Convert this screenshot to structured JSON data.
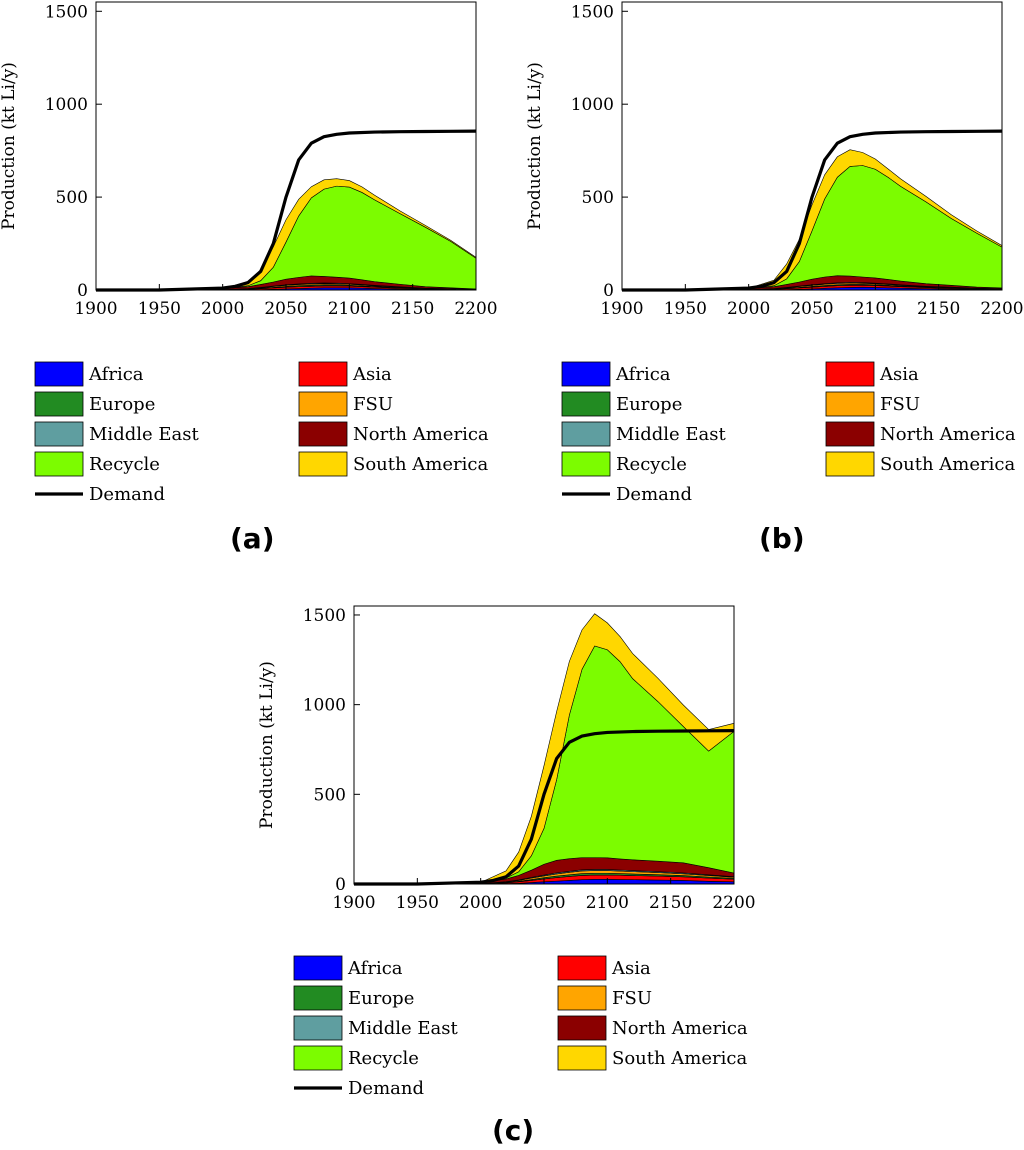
{
  "chart_data": [
    {
      "id": "a",
      "type": "area",
      "panel_label": "(a)",
      "title": "",
      "xlabel": "",
      "ylabel": "Production (kt Li/y)",
      "xlim": [
        1900,
        2200
      ],
      "ylim": [
        0,
        1550
      ],
      "xticks": [
        1900,
        1950,
        2000,
        2050,
        2100,
        2150,
        2200
      ],
      "yticks": [
        0,
        500,
        1000,
        1500
      ],
      "x": [
        1900,
        1950,
        2000,
        2020,
        2030,
        2040,
        2050,
        2060,
        2070,
        2080,
        2090,
        2100,
        2110,
        2120,
        2140,
        2160,
        2180,
        2200
      ],
      "series": [
        {
          "name": "Africa",
          "color": "#0000ff",
          "values": [
            0,
            0,
            0,
            1,
            2,
            4,
            6,
            8,
            10,
            12,
            12,
            12,
            10,
            8,
            5,
            3,
            2,
            1
          ]
        },
        {
          "name": "Asia",
          "color": "#ff0000",
          "values": [
            0,
            0,
            1,
            3,
            5,
            7,
            9,
            10,
            10,
            10,
            10,
            9,
            8,
            7,
            5,
            3,
            2,
            1
          ]
        },
        {
          "name": "Europe",
          "color": "#228b22",
          "values": [
            0,
            0,
            0,
            1,
            2,
            3,
            4,
            5,
            5,
            5,
            5,
            4,
            4,
            3,
            2,
            1,
            1,
            0
          ]
        },
        {
          "name": "FSU",
          "color": "#ffa500",
          "values": [
            0,
            0,
            1,
            2,
            3,
            5,
            6,
            7,
            7,
            7,
            6,
            6,
            5,
            4,
            3,
            2,
            1,
            1
          ]
        },
        {
          "name": "Middle East",
          "color": "#5f9ea0",
          "values": [
            0,
            0,
            0,
            1,
            2,
            2,
            3,
            3,
            4,
            4,
            4,
            3,
            3,
            3,
            2,
            1,
            1,
            0
          ]
        },
        {
          "name": "North America",
          "color": "#8b0000",
          "values": [
            0,
            1,
            5,
            10,
            16,
            22,
            30,
            35,
            40,
            35,
            32,
            30,
            25,
            20,
            14,
            8,
            5,
            3
          ]
        },
        {
          "name": "Recycle",
          "color": "#7cfc00",
          "values": [
            0,
            0,
            0,
            5,
            20,
            80,
            200,
            330,
            420,
            470,
            490,
            490,
            470,
            440,
            380,
            320,
            250,
            165
          ]
        },
        {
          "name": "South America",
          "color": "#ffd700",
          "values": [
            0,
            0,
            2,
            20,
            60,
            110,
            120,
            90,
            60,
            50,
            40,
            35,
            30,
            25,
            15,
            10,
            6,
            5
          ]
        }
      ],
      "demand": {
        "name": "Demand",
        "color": "#000000",
        "x": [
          1900,
          1950,
          2000,
          2010,
          2020,
          2030,
          2040,
          2050,
          2060,
          2070,
          2080,
          2090,
          2100,
          2120,
          2140,
          2160,
          2180,
          2200
        ],
        "values": [
          0,
          0,
          10,
          20,
          40,
          100,
          250,
          500,
          700,
          790,
          825,
          838,
          845,
          850,
          852,
          853,
          854,
          855
        ]
      }
    },
    {
      "id": "b",
      "type": "area",
      "panel_label": "(b)",
      "title": "",
      "xlabel": "",
      "ylabel": "Production (kt Li/y)",
      "xlim": [
        1900,
        2200
      ],
      "ylim": [
        0,
        1550
      ],
      "xticks": [
        1900,
        1950,
        2000,
        2050,
        2100,
        2150,
        2200
      ],
      "yticks": [
        0,
        500,
        1000,
        1500
      ],
      "x": [
        1900,
        1950,
        2000,
        2020,
        2030,
        2040,
        2050,
        2060,
        2070,
        2080,
        2090,
        2100,
        2110,
        2120,
        2140,
        2160,
        2180,
        2200
      ],
      "series": [
        {
          "name": "Africa",
          "color": "#0000ff",
          "values": [
            0,
            0,
            0,
            1,
            2,
            4,
            6,
            9,
            12,
            14,
            15,
            14,
            12,
            10,
            7,
            5,
            3,
            2
          ]
        },
        {
          "name": "Asia",
          "color": "#ff0000",
          "values": [
            0,
            0,
            1,
            3,
            5,
            7,
            9,
            10,
            11,
            11,
            10,
            10,
            9,
            8,
            6,
            4,
            3,
            2
          ]
        },
        {
          "name": "Europe",
          "color": "#228b22",
          "values": [
            0,
            0,
            0,
            1,
            2,
            3,
            4,
            5,
            5,
            5,
            5,
            4,
            4,
            3,
            2,
            2,
            1,
            1
          ]
        },
        {
          "name": "FSU",
          "color": "#ffa500",
          "values": [
            0,
            0,
            1,
            2,
            3,
            5,
            6,
            7,
            7,
            7,
            6,
            6,
            5,
            4,
            3,
            2,
            2,
            1
          ]
        },
        {
          "name": "Middle East",
          "color": "#5f9ea0",
          "values": [
            0,
            0,
            0,
            1,
            2,
            2,
            3,
            3,
            4,
            4,
            4,
            3,
            3,
            3,
            2,
            2,
            1,
            1
          ]
        },
        {
          "name": "North America",
          "color": "#8b0000",
          "values": [
            0,
            1,
            5,
            10,
            16,
            22,
            30,
            36,
            38,
            34,
            30,
            28,
            24,
            20,
            14,
            10,
            6,
            4
          ]
        },
        {
          "name": "Recycle",
          "color": "#7cfc00",
          "values": [
            0,
            0,
            0,
            5,
            30,
            110,
            260,
            420,
            530,
            590,
            600,
            585,
            550,
            510,
            440,
            360,
            290,
            220
          ]
        },
        {
          "name": "South America",
          "color": "#ffd700",
          "values": [
            0,
            0,
            2,
            30,
            80,
            120,
            140,
            130,
            110,
            90,
            70,
            55,
            45,
            40,
            30,
            20,
            12,
            8
          ]
        }
      ],
      "demand": {
        "name": "Demand",
        "color": "#000000",
        "x": [
          1900,
          1950,
          2000,
          2010,
          2020,
          2030,
          2040,
          2050,
          2060,
          2070,
          2080,
          2090,
          2100,
          2120,
          2140,
          2160,
          2180,
          2200
        ],
        "values": [
          0,
          0,
          10,
          20,
          40,
          100,
          250,
          500,
          700,
          790,
          825,
          838,
          845,
          850,
          852,
          853,
          854,
          855
        ]
      }
    },
    {
      "id": "c",
      "type": "area",
      "panel_label": "(c)",
      "title": "",
      "xlabel": "",
      "ylabel": "Production (kt Li/y)",
      "xlim": [
        1900,
        2200
      ],
      "ylim": [
        0,
        1550
      ],
      "xticks": [
        1900,
        1950,
        2000,
        2050,
        2100,
        2150,
        2200
      ],
      "yticks": [
        0,
        500,
        1000,
        1500
      ],
      "x": [
        1900,
        1950,
        2000,
        2020,
        2030,
        2040,
        2050,
        2060,
        2070,
        2080,
        2090,
        2100,
        2110,
        2120,
        2140,
        2160,
        2180,
        2200
      ],
      "series": [
        {
          "name": "Africa",
          "color": "#0000ff",
          "values": [
            0,
            0,
            0,
            2,
            4,
            8,
            12,
            16,
            20,
            24,
            26,
            26,
            25,
            24,
            22,
            20,
            15,
            12
          ]
        },
        {
          "name": "Asia",
          "color": "#ff0000",
          "values": [
            0,
            0,
            1,
            4,
            8,
            12,
            16,
            20,
            22,
            24,
            24,
            24,
            24,
            23,
            22,
            20,
            18,
            15
          ]
        },
        {
          "name": "Europe",
          "color": "#228b22",
          "values": [
            0,
            0,
            0,
            2,
            3,
            5,
            7,
            8,
            9,
            10,
            10,
            10,
            9,
            9,
            8,
            7,
            6,
            5
          ]
        },
        {
          "name": "FSU",
          "color": "#ffa500",
          "values": [
            0,
            0,
            1,
            3,
            5,
            8,
            10,
            12,
            14,
            15,
            15,
            15,
            14,
            13,
            12,
            10,
            8,
            6
          ]
        },
        {
          "name": "Middle East",
          "color": "#5f9ea0",
          "values": [
            0,
            0,
            0,
            2,
            3,
            4,
            5,
            6,
            6,
            6,
            6,
            6,
            6,
            6,
            5,
            5,
            4,
            3
          ]
        },
        {
          "name": "North America",
          "color": "#8b0000",
          "values": [
            0,
            1,
            5,
            15,
            25,
            40,
            60,
            70,
            70,
            68,
            66,
            65,
            62,
            60,
            58,
            56,
            40,
            20
          ]
        },
        {
          "name": "Recycle",
          "color": "#7cfc00",
          "values": [
            0,
            0,
            0,
            5,
            20,
            80,
            200,
            450,
            800,
            1050,
            1180,
            1160,
            1100,
            1010,
            890,
            760,
            650,
            790
          ]
        },
        {
          "name": "South America",
          "color": "#ffd700",
          "values": [
            0,
            0,
            2,
            40,
            110,
            220,
            350,
            380,
            300,
            220,
            180,
            150,
            140,
            140,
            130,
            120,
            120,
            45
          ]
        }
      ],
      "demand": {
        "name": "Demand",
        "color": "#000000",
        "x": [
          1900,
          1950,
          2000,
          2010,
          2020,
          2030,
          2040,
          2050,
          2060,
          2070,
          2080,
          2090,
          2100,
          2120,
          2140,
          2160,
          2180,
          2200
        ],
        "values": [
          0,
          0,
          10,
          20,
          40,
          100,
          250,
          500,
          700,
          790,
          825,
          838,
          845,
          850,
          852,
          853,
          854,
          855
        ]
      }
    }
  ],
  "legend": {
    "left": [
      "Africa",
      "Europe",
      "Middle East",
      "Recycle",
      "Demand"
    ],
    "right": [
      "Asia",
      "FSU",
      "North America",
      "South America"
    ]
  }
}
